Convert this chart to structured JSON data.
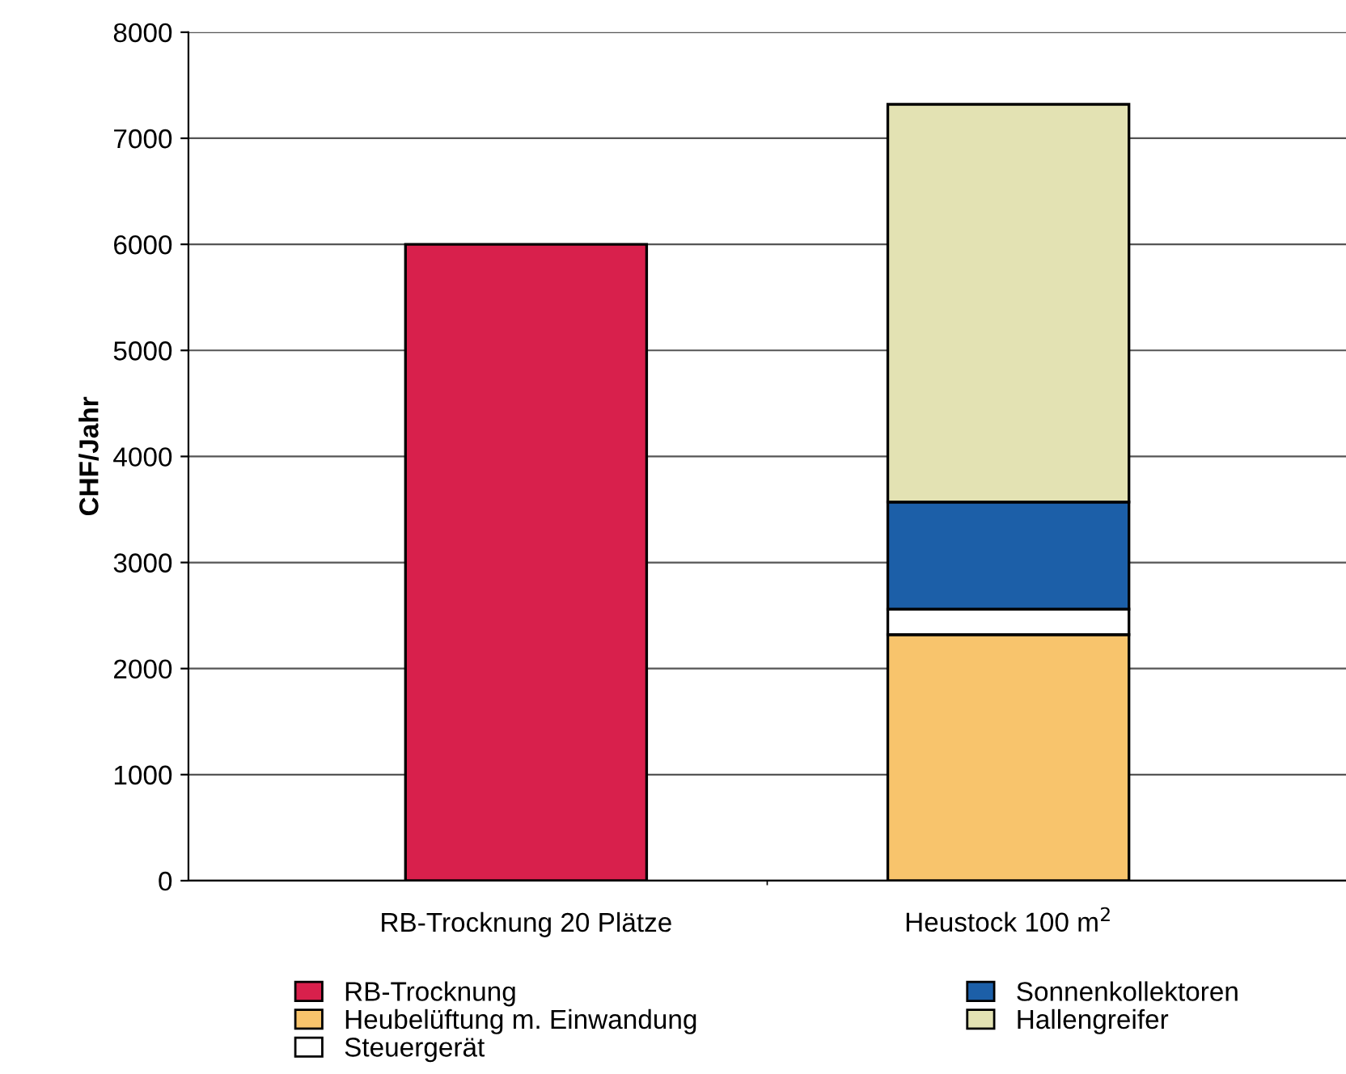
{
  "chart_data": {
    "type": "bar",
    "stacked": true,
    "ylabel": "CHF/Jahr",
    "categories": [
      "RB-Trocknung 20 Plätze",
      "Heustock 100 m$^{2}$"
    ],
    "series": [
      {
        "name": "RB-Trocknung",
        "color": "#d8204c",
        "values": [
          6000,
          null
        ]
      },
      {
        "name": "Heubelüftung m. Einwandung",
        "color": "#f8c46c",
        "values": [
          null,
          2320
        ]
      },
      {
        "name": "Steuergerät",
        "color": "#ffffff",
        "values": [
          null,
          240
        ]
      },
      {
        "name": "Sonnenkollektoren",
        "color": "#1c5fa8",
        "values": [
          null,
          1010
        ]
      },
      {
        "name": "Hallengreifer",
        "color": "#e3e2b3",
        "values": [
          null,
          3750
        ]
      }
    ],
    "ylim": [
      0,
      8000
    ],
    "yticks": [
      0,
      1000,
      2000,
      3000,
      4000,
      5000,
      6000,
      7000,
      8000
    ],
    "grid": "y",
    "legend": "bottom"
  }
}
